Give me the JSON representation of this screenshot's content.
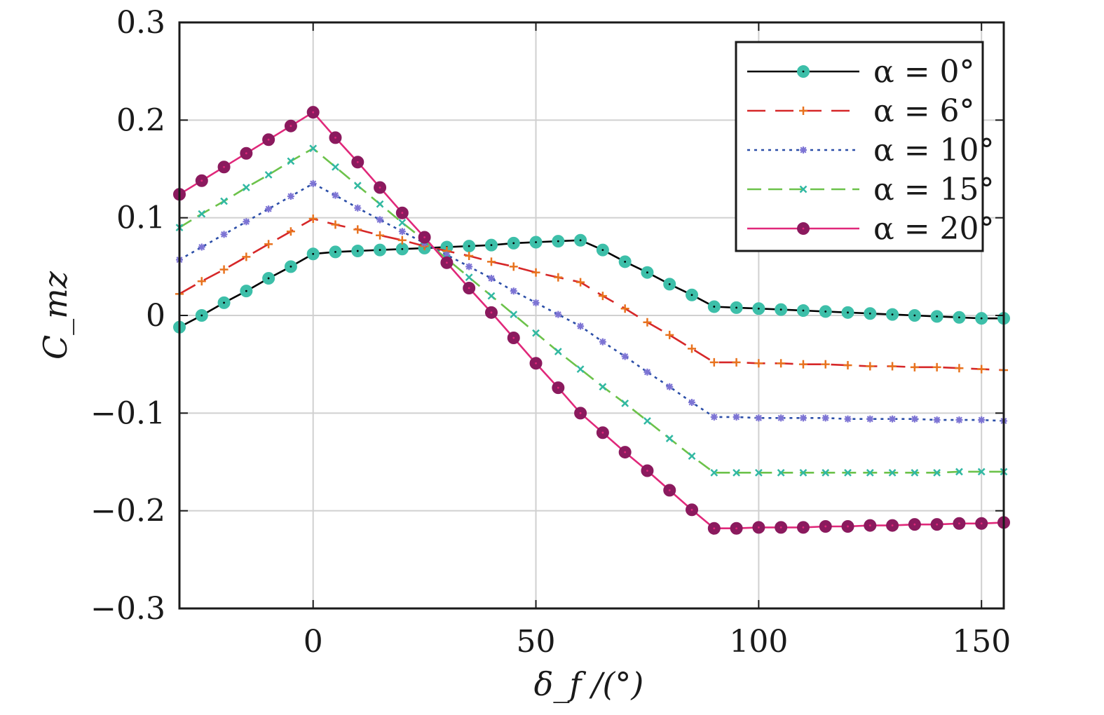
{
  "chart_data": {
    "type": "line",
    "xlabel": "δ_f /(°)",
    "ylabel": "C_mz",
    "xlim": [
      -30,
      155
    ],
    "ylim": [
      -0.3,
      0.3
    ],
    "xticks": [
      0,
      50,
      100,
      150
    ],
    "yticks": [
      0.3,
      0.2,
      0.1,
      0,
      -0.1,
      -0.2,
      -0.3
    ],
    "xtick_labels": [
      "0",
      "50",
      "100",
      "150"
    ],
    "ytick_labels": [
      "0.3",
      "0.2",
      "0.1",
      "0",
      "−0.1",
      "−0.2",
      "−0.3"
    ],
    "grid": true,
    "legend_position": "top-right",
    "x": [
      -30,
      -25,
      -20,
      -15,
      -10,
      -5,
      0,
      5,
      10,
      15,
      20,
      25,
      30,
      35,
      40,
      45,
      50,
      55,
      60,
      65,
      70,
      75,
      80,
      85,
      90,
      95,
      100,
      105,
      110,
      115,
      120,
      125,
      130,
      135,
      140,
      145,
      150,
      155
    ],
    "series": [
      {
        "name": "α = 0°",
        "color": "#000000",
        "marker_color": "#3dbfa9",
        "dash": "solid",
        "marker": "circle",
        "values": [
          -0.012,
          0.0,
          0.013,
          0.025,
          0.038,
          0.05,
          0.063,
          0.065,
          0.066,
          0.067,
          0.068,
          0.069,
          0.07,
          0.071,
          0.072,
          0.074,
          0.075,
          0.076,
          0.077,
          0.067,
          0.055,
          0.044,
          0.032,
          0.021,
          0.009,
          0.008,
          0.007,
          0.006,
          0.005,
          0.004,
          0.003,
          0.002,
          0.001,
          0.0,
          -0.001,
          -0.002,
          -0.003,
          -0.003
        ]
      },
      {
        "name": "α = 6°",
        "color": "#d62728",
        "marker_color": "#e8731f",
        "dash": "long-dash",
        "marker": "plus",
        "values": [
          0.022,
          0.035,
          0.047,
          0.06,
          0.073,
          0.086,
          0.099,
          0.093,
          0.088,
          0.082,
          0.077,
          0.071,
          0.066,
          0.061,
          0.055,
          0.05,
          0.044,
          0.039,
          0.034,
          0.02,
          0.007,
          -0.007,
          -0.02,
          -0.034,
          -0.048,
          -0.048,
          -0.049,
          -0.049,
          -0.05,
          -0.05,
          -0.051,
          -0.052,
          -0.052,
          -0.053,
          -0.053,
          -0.054,
          -0.055,
          -0.056
        ]
      },
      {
        "name": "α = 10°",
        "color": "#2b4ea8",
        "marker_color": "#7d74d4",
        "dash": "dotted",
        "marker": "star",
        "values": [
          0.057,
          0.07,
          0.083,
          0.096,
          0.109,
          0.122,
          0.135,
          0.123,
          0.11,
          0.098,
          0.086,
          0.074,
          0.062,
          0.05,
          0.038,
          0.025,
          0.013,
          0.001,
          -0.011,
          -0.027,
          -0.042,
          -0.058,
          -0.073,
          -0.089,
          -0.104,
          -0.104,
          -0.105,
          -0.105,
          -0.105,
          -0.105,
          -0.106,
          -0.106,
          -0.106,
          -0.106,
          -0.107,
          -0.107,
          -0.107,
          -0.108
        ]
      },
      {
        "name": "α = 15°",
        "color": "#6cc24a",
        "marker_color": "#31b8a3",
        "dash": "dash",
        "marker": "x",
        "values": [
          0.09,
          0.104,
          0.117,
          0.131,
          0.144,
          0.158,
          0.171,
          0.152,
          0.133,
          0.114,
          0.095,
          0.077,
          0.058,
          0.039,
          0.02,
          0.001,
          -0.018,
          -0.037,
          -0.055,
          -0.073,
          -0.09,
          -0.108,
          -0.126,
          -0.144,
          -0.161,
          -0.161,
          -0.161,
          -0.161,
          -0.161,
          -0.161,
          -0.161,
          -0.161,
          -0.161,
          -0.161,
          -0.161,
          -0.16,
          -0.16,
          -0.16
        ]
      },
      {
        "name": "α = 20°",
        "color": "#e0287a",
        "marker_color": "#8b1a5e",
        "dash": "solid",
        "marker": "circle",
        "values": [
          0.124,
          0.138,
          0.152,
          0.166,
          0.18,
          0.194,
          0.208,
          0.182,
          0.157,
          0.131,
          0.105,
          0.08,
          0.054,
          0.028,
          0.003,
          -0.023,
          -0.049,
          -0.074,
          -0.1,
          -0.12,
          -0.14,
          -0.159,
          -0.179,
          -0.199,
          -0.218,
          -0.218,
          -0.217,
          -0.217,
          -0.217,
          -0.216,
          -0.216,
          -0.215,
          -0.215,
          -0.214,
          -0.214,
          -0.213,
          -0.213,
          -0.212
        ]
      }
    ]
  }
}
